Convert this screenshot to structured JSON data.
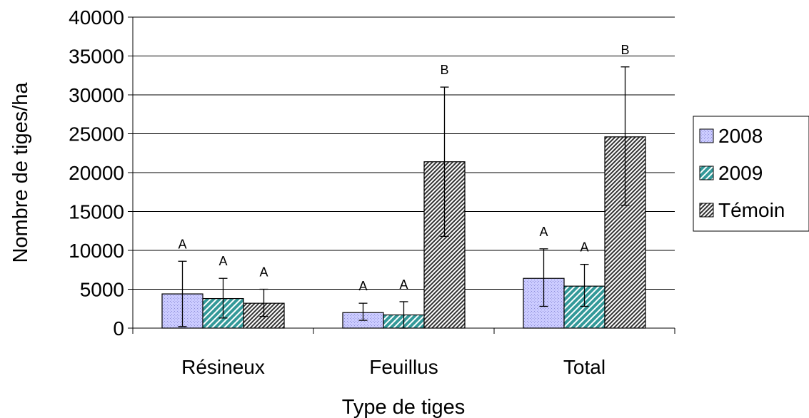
{
  "chart_data": {
    "type": "bar",
    "title": "",
    "xlabel": "Type de tiges",
    "ylabel": "Nombre de tiges/ha",
    "ylim": [
      0,
      40000
    ],
    "yticks": [
      0,
      5000,
      10000,
      15000,
      20000,
      25000,
      30000,
      35000,
      40000
    ],
    "grid": true,
    "legend_position": "right",
    "categories": [
      "Résineux",
      "Feuillus",
      "Total"
    ],
    "series": [
      {
        "name": "2008",
        "fill": "#ccccff",
        "pattern": "dots",
        "values": [
          4400,
          2000,
          6400
        ],
        "err_low": [
          200,
          1000,
          2800
        ],
        "err_high": [
          8600,
          3200,
          10200
        ],
        "letters": [
          "A",
          "A",
          "A"
        ]
      },
      {
        "name": "2009",
        "fill": "#339999",
        "pattern": "diagonal",
        "values": [
          3800,
          1700,
          5400
        ],
        "err_low": [
          1300,
          0,
          2800
        ],
        "err_high": [
          6400,
          3400,
          8200
        ],
        "letters": [
          "A",
          "A",
          "A"
        ]
      },
      {
        "name": "Témoin",
        "fill": "#ffffff",
        "pattern": "hatch",
        "values": [
          3200,
          21400,
          24600
        ],
        "err_low": [
          1500,
          11800,
          15800
        ],
        "err_high": [
          5000,
          31000,
          33600
        ],
        "letters": [
          "A",
          "B",
          "B"
        ]
      }
    ]
  }
}
